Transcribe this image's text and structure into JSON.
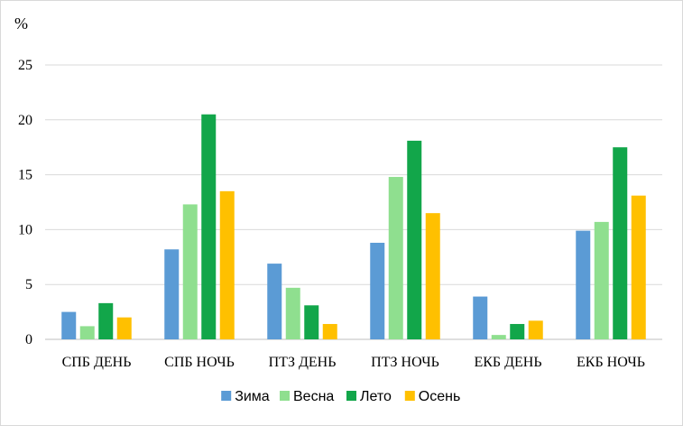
{
  "chart_data": {
    "type": "bar",
    "ylabel": "%",
    "ylim": [
      0,
      25
    ],
    "yticks": [
      0,
      5,
      10,
      15,
      20,
      25
    ],
    "grid": true,
    "legend": "bottom",
    "categories": [
      "СПБ ДЕНЬ",
      "СПБ НОЧЬ",
      "ПТЗ ДЕНЬ",
      "ПТЗ НОЧЬ",
      "ЕКБ ДЕНЬ",
      "ЕКБ НОЧЬ"
    ],
    "series": [
      {
        "name": "Зима",
        "color": "#5b9bd5",
        "values": [
          2.5,
          8.2,
          6.9,
          8.8,
          3.9,
          9.9
        ]
      },
      {
        "name": "Весна",
        "color": "#8fdf8f",
        "values": [
          1.2,
          12.3,
          4.7,
          14.8,
          0.4,
          10.7
        ]
      },
      {
        "name": "Лето",
        "color": "#12a64a",
        "values": [
          3.3,
          20.5,
          3.1,
          18.1,
          1.4,
          17.5
        ]
      },
      {
        "name": "Осень",
        "color": "#ffc000",
        "values": [
          2.0,
          13.5,
          1.4,
          11.5,
          1.7,
          13.1
        ]
      }
    ]
  }
}
